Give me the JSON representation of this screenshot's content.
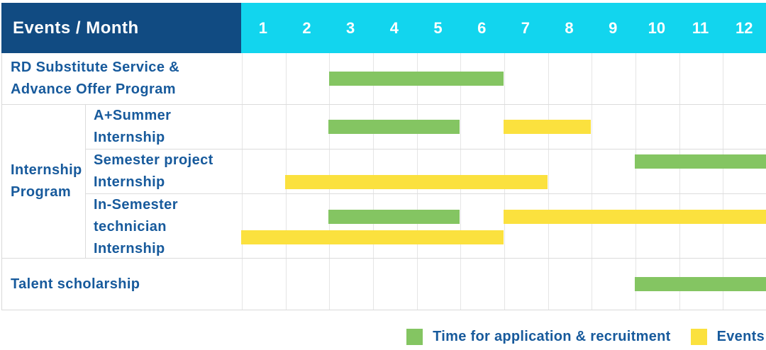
{
  "colors": {
    "navy_header_bg": "#114B82",
    "cyan_months_bg": "#12D5EE",
    "bar_green": "#84C562",
    "bar_yellow": "#FBE13E",
    "label_text_blue": "#175A9C",
    "header_text": "#FFFFFF",
    "gridline": "#E5E5E5",
    "row_divider": "#DCDCDC"
  },
  "chart_data": {
    "type": "gantt",
    "title": "Events / Month",
    "x_axis_label": "Month",
    "months": [
      "1",
      "2",
      "3",
      "4",
      "5",
      "6",
      "7",
      "8",
      "9",
      "10",
      "11",
      "12"
    ],
    "x_range": [
      1,
      12
    ],
    "grid": true,
    "legend_position": "bottom-right",
    "legend": [
      {
        "key": "application",
        "label": "Time for application & recruitment",
        "color_key": "bar_green"
      },
      {
        "key": "events",
        "label": "Events",
        "color_key": "bar_yellow"
      }
    ],
    "sections": [
      {
        "kind": "row",
        "id": "rd-substitute-service",
        "label_lines": [
          "RD Substitute Service &",
          "Advance Offer Program"
        ],
        "bar_lines": [
          [
            {
              "type": "application",
              "start_month": 3,
              "end_month": 6
            }
          ]
        ]
      },
      {
        "kind": "group",
        "id": "internship-program",
        "label_lines": [
          "Internship",
          "Program"
        ],
        "rows": [
          {
            "id": "a-plus-summer-internship",
            "label_lines": [
              "A+Summer",
              "Internship"
            ],
            "bar_lines": [
              [
                {
                  "type": "application",
                  "start_month": 3,
                  "end_month": 5
                },
                {
                  "type": "events",
                  "start_month": 7,
                  "end_month": 8
                }
              ]
            ]
          },
          {
            "id": "semester-project-internship",
            "label_lines": [
              "Semester project",
              "Internship"
            ],
            "bar_lines": [
              [
                {
                  "type": "application",
                  "start_month": 10,
                  "end_month": 12
                }
              ],
              [
                {
                  "type": "events",
                  "start_month": 2,
                  "end_month": 7
                }
              ]
            ]
          },
          {
            "id": "in-semester-technician-internship",
            "label_lines": [
              "In-Semester",
              "technician Internship"
            ],
            "bar_lines": [
              [
                {
                  "type": "application",
                  "start_month": 3,
                  "end_month": 5
                },
                {
                  "type": "events",
                  "start_month": 7,
                  "end_month": 12
                }
              ],
              [
                {
                  "type": "events",
                  "start_month": 1,
                  "end_month": 6
                }
              ]
            ]
          }
        ]
      },
      {
        "kind": "row",
        "id": "talent-scholarship",
        "label_lines": [
          "Talent scholarship"
        ],
        "bar_lines": [
          [
            {
              "type": "application",
              "start_month": 10,
              "end_month": 12
            }
          ]
        ]
      }
    ]
  }
}
